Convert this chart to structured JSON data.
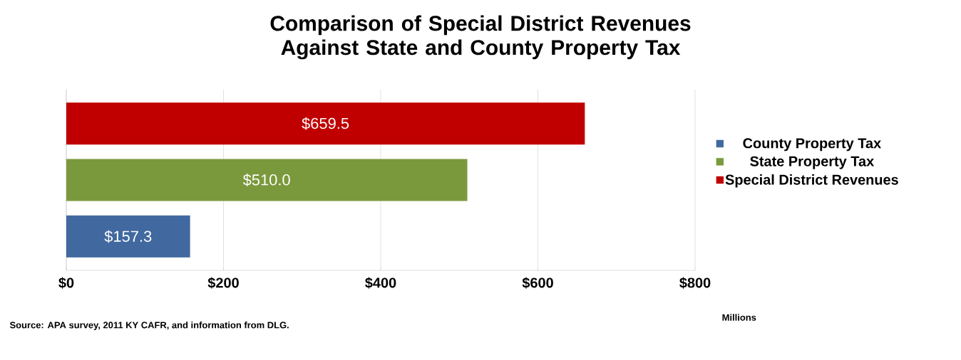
{
  "chart_data": {
    "type": "bar",
    "orientation": "horizontal",
    "title": "Comparison of Special District Revenues Against State and County Property Tax",
    "categories": [
      null,
      null,
      null
    ],
    "series": [
      {
        "name": "County Property Tax",
        "color": "#4169a0",
        "values": [
          null,
          null,
          157.3
        ],
        "value_labels": [
          null,
          null,
          "$157.3"
        ]
      },
      {
        "name": "State Property Tax",
        "color": "#7a993c",
        "values": [
          null,
          510.0,
          null
        ],
        "value_labels": [
          null,
          "$510.0",
          null
        ]
      },
      {
        "name": "Special District Revenues",
        "color": "#c00000",
        "values": [
          659.5,
          null,
          null
        ],
        "value_labels": [
          "$659.5",
          null,
          null
        ]
      }
    ],
    "xlim": [
      0,
      800
    ],
    "xticks": [
      {
        "value": 0,
        "label": "$0"
      },
      {
        "value": 200,
        "label": "$200"
      },
      {
        "value": 400,
        "label": "$400"
      },
      {
        "value": 600,
        "label": "$600"
      },
      {
        "value": 800,
        "label": "$800"
      }
    ],
    "xlabel": "Millions",
    "grid": "x",
    "legend": "right",
    "annotations": [
      "Source: APA survey, 2011 KY CAFR, and information from DLG."
    ]
  }
}
